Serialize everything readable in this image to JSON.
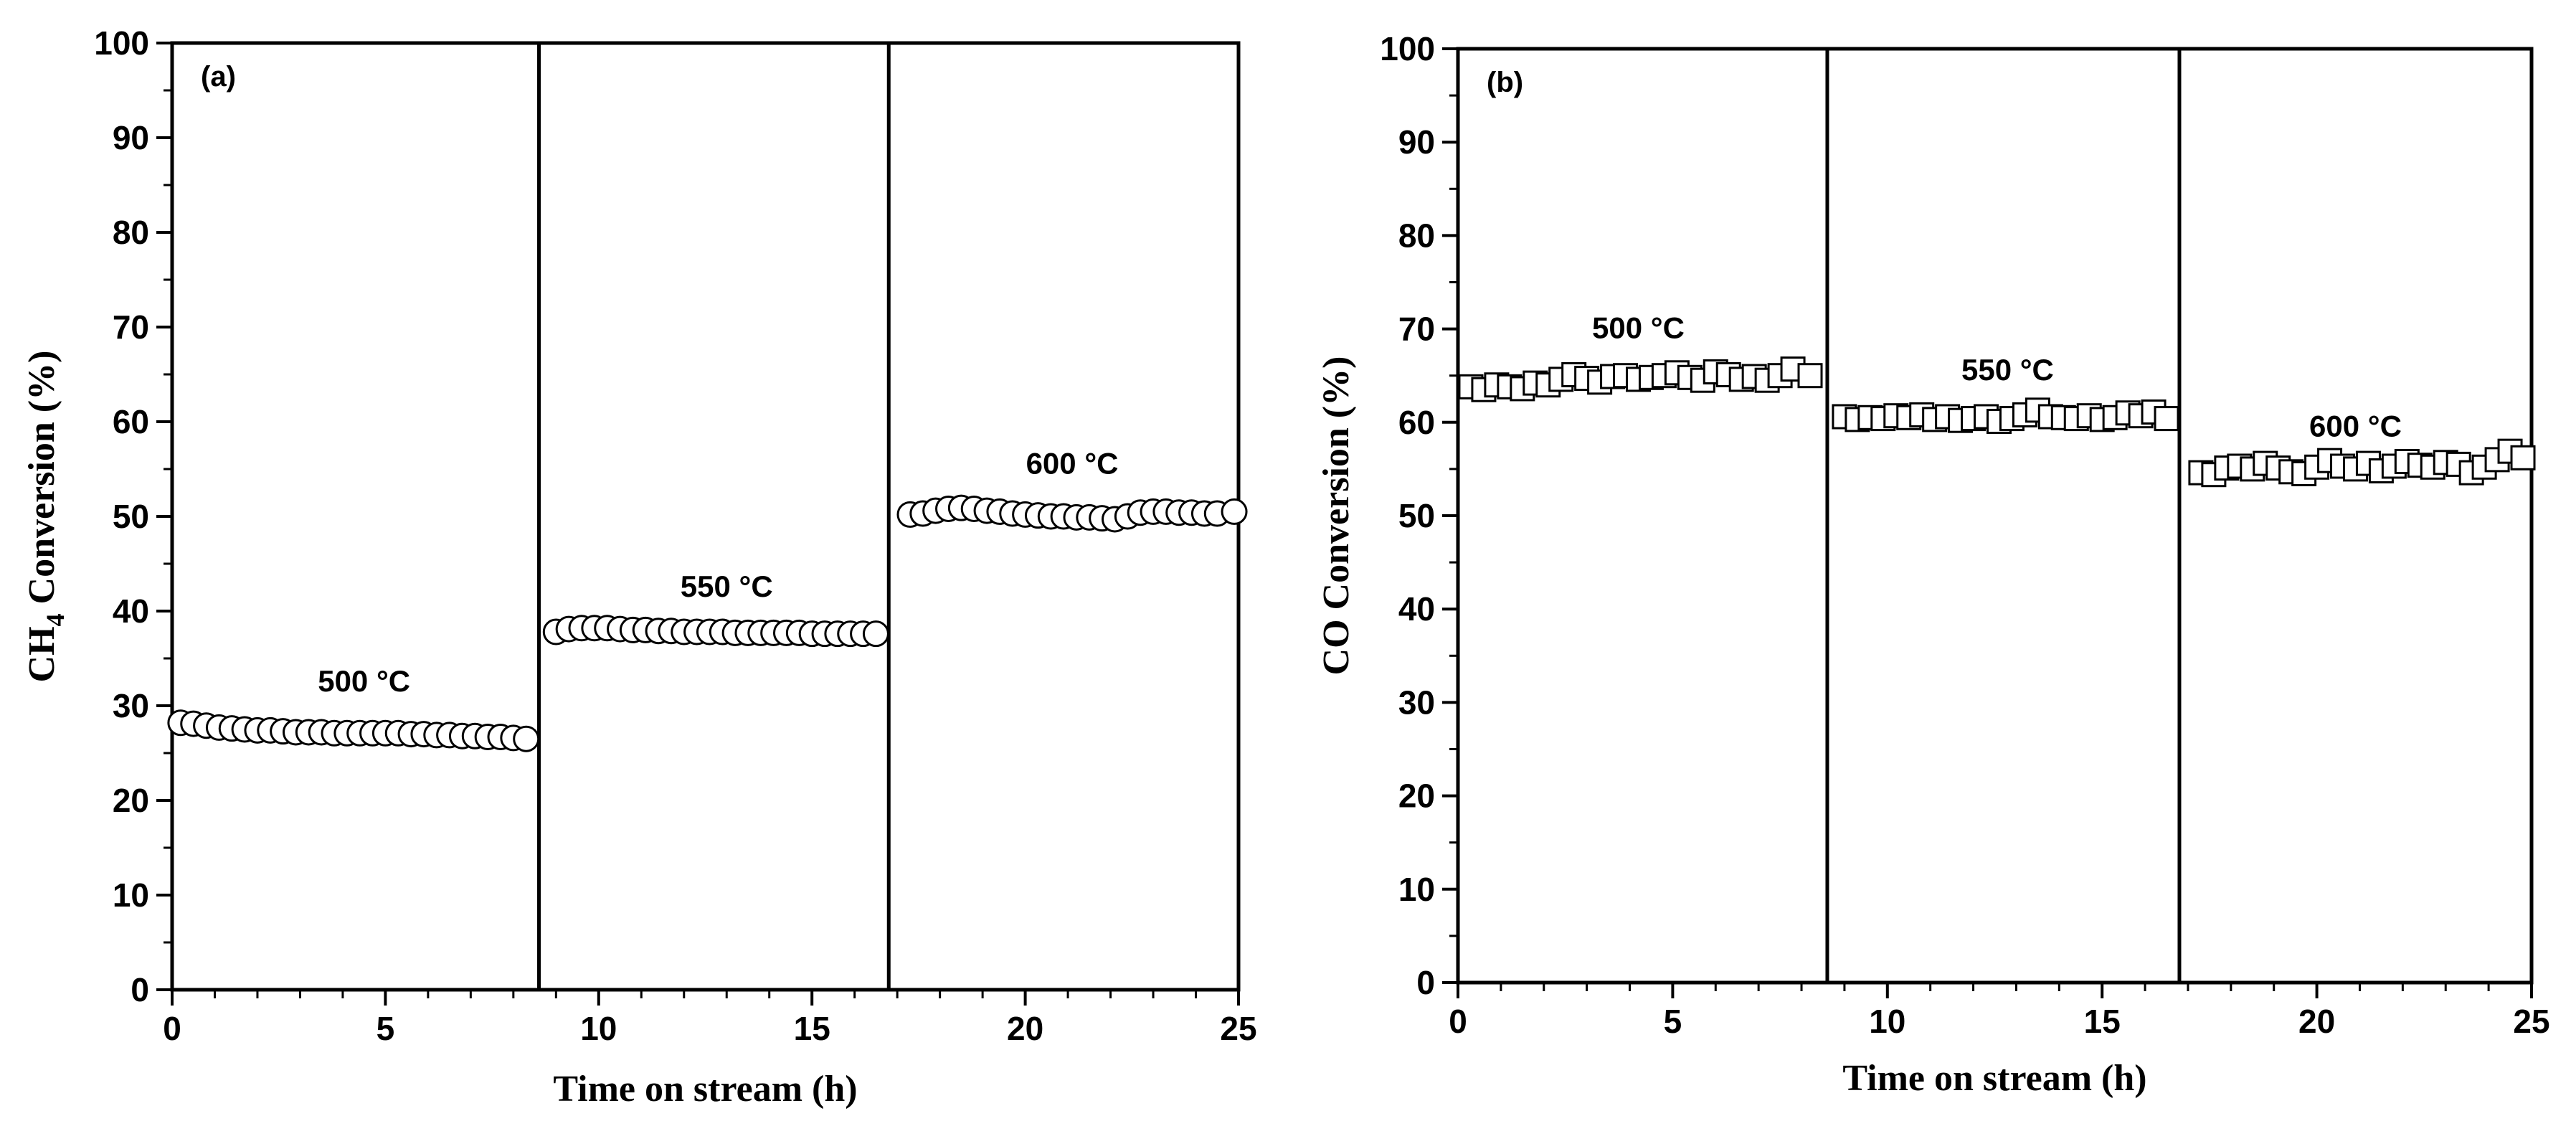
{
  "chart_data": [
    {
      "type": "scatter",
      "panel_label": "(a)",
      "xlabel": "Time on stream (h)",
      "ylabel": {
        "prefix": "CH",
        "subscript": "4",
        "suffix": " Conversion (%)"
      },
      "xlim": [
        0,
        25
      ],
      "ylim": [
        0,
        100
      ],
      "xticks": [
        0,
        5,
        10,
        15,
        20,
        25
      ],
      "yticks": [
        0,
        10,
        20,
        30,
        40,
        50,
        60,
        70,
        80,
        90,
        100
      ],
      "marker": "circle",
      "dividers": [
        8.6,
        16.8
      ],
      "segments": [
        {
          "label": "500 °C",
          "label_x": 4.5,
          "label_y": 31.5,
          "x": [
            0.2,
            0.5,
            0.8,
            1.1,
            1.4,
            1.7,
            2.0,
            2.3,
            2.6,
            2.9,
            3.2,
            3.5,
            3.8,
            4.1,
            4.4,
            4.7,
            5.0,
            5.3,
            5.6,
            5.9,
            6.2,
            6.5,
            6.8,
            7.1,
            7.4,
            7.7,
            8.0,
            8.3
          ],
          "y": [
            28.2,
            28.1,
            27.9,
            27.7,
            27.6,
            27.5,
            27.4,
            27.4,
            27.3,
            27.2,
            27.2,
            27.2,
            27.1,
            27.1,
            27.1,
            27.1,
            27.1,
            27.1,
            27.0,
            27.0,
            26.9,
            26.9,
            26.8,
            26.8,
            26.7,
            26.7,
            26.6,
            26.5
          ]
        },
        {
          "label": "550 °C",
          "label_x": 13.0,
          "label_y": 41.5,
          "x": [
            9.0,
            9.3,
            9.6,
            9.9,
            10.2,
            10.5,
            10.8,
            11.1,
            11.4,
            11.7,
            12.0,
            12.3,
            12.6,
            12.9,
            13.2,
            13.5,
            13.8,
            14.1,
            14.4,
            14.7,
            15.0,
            15.3,
            15.6,
            15.9,
            16.2,
            16.5
          ],
          "y": [
            37.8,
            38.1,
            38.2,
            38.2,
            38.2,
            38.1,
            38.0,
            38.0,
            37.9,
            37.9,
            37.8,
            37.8,
            37.8,
            37.8,
            37.7,
            37.7,
            37.7,
            37.7,
            37.7,
            37.7,
            37.6,
            37.6,
            37.6,
            37.6,
            37.6,
            37.6
          ]
        },
        {
          "label": "600 °C",
          "label_x": 21.1,
          "label_y": 54.5,
          "x": [
            17.3,
            17.6,
            17.9,
            18.2,
            18.5,
            18.8,
            19.1,
            19.4,
            19.7,
            20.0,
            20.3,
            20.6,
            20.9,
            21.2,
            21.5,
            21.8,
            22.1,
            22.4,
            22.7,
            23.0,
            23.3,
            23.6,
            23.9,
            24.2,
            24.5,
            24.9
          ],
          "y": [
            50.2,
            50.3,
            50.6,
            50.8,
            50.9,
            50.8,
            50.6,
            50.5,
            50.3,
            50.2,
            50.1,
            50.0,
            50.0,
            49.9,
            49.9,
            49.8,
            49.7,
            50.0,
            50.4,
            50.5,
            50.5,
            50.4,
            50.4,
            50.3,
            50.3,
            50.5
          ]
        }
      ]
    },
    {
      "type": "scatter",
      "panel_label": "(b)",
      "xlabel": "Time on stream (h)",
      "ylabel": {
        "prefix": "CO Conversion (%)",
        "subscript": "",
        "suffix": ""
      },
      "xlim": [
        0,
        25
      ],
      "ylim": [
        0,
        100
      ],
      "xticks": [
        0,
        5,
        10,
        15,
        20,
        25
      ],
      "yticks": [
        0,
        10,
        20,
        30,
        40,
        50,
        60,
        70,
        80,
        90,
        100
      ],
      "marker": "square",
      "dividers": [
        8.6,
        16.8
      ],
      "segments": [
        {
          "label": "500 °C",
          "label_x": 4.2,
          "label_y": 69.0,
          "x": [
            0.3,
            0.6,
            0.9,
            1.2,
            1.5,
            1.8,
            2.1,
            2.4,
            2.7,
            3.0,
            3.3,
            3.6,
            3.9,
            4.2,
            4.5,
            4.8,
            5.1,
            5.4,
            5.7,
            6.0,
            6.3,
            6.6,
            6.9,
            7.2,
            7.5,
            7.8,
            8.2
          ],
          "y": [
            63.8,
            63.5,
            64.0,
            63.8,
            63.6,
            64.2,
            64.0,
            64.6,
            65.1,
            64.7,
            64.3,
            64.9,
            65.0,
            64.6,
            64.8,
            65.0,
            65.3,
            64.8,
            64.5,
            65.4,
            65.1,
            64.6,
            64.9,
            64.5,
            65.0,
            65.7,
            65.0
          ]
        },
        {
          "label": "550 °C",
          "label_x": 12.8,
          "label_y": 64.5,
          "x": [
            9.0,
            9.3,
            9.6,
            9.9,
            10.2,
            10.5,
            10.8,
            11.1,
            11.4,
            11.7,
            12.0,
            12.3,
            12.6,
            12.9,
            13.2,
            13.5,
            13.8,
            14.1,
            14.4,
            14.7,
            15.0,
            15.3,
            15.6,
            15.9,
            16.2,
            16.5
          ],
          "y": [
            60.6,
            60.3,
            60.5,
            60.4,
            60.7,
            60.5,
            60.8,
            60.3,
            60.6,
            60.2,
            60.4,
            60.6,
            60.1,
            60.4,
            60.8,
            61.3,
            60.6,
            60.5,
            60.4,
            60.7,
            60.3,
            60.5,
            61.0,
            60.7,
            61.1,
            60.4
          ]
        },
        {
          "label": "600 °C",
          "label_x": 20.9,
          "label_y": 58.5,
          "x": [
            17.3,
            17.6,
            17.9,
            18.2,
            18.5,
            18.8,
            19.1,
            19.4,
            19.7,
            20.0,
            20.3,
            20.6,
            20.9,
            21.2,
            21.5,
            21.8,
            22.1,
            22.4,
            22.7,
            23.0,
            23.3,
            23.6,
            23.9,
            24.2,
            24.5,
            24.8
          ],
          "y": [
            54.6,
            54.4,
            55.1,
            55.3,
            55.0,
            55.6,
            55.1,
            54.7,
            54.5,
            55.2,
            55.9,
            55.3,
            55.0,
            55.6,
            54.8,
            55.3,
            55.8,
            55.4,
            55.2,
            55.7,
            55.5,
            54.6,
            55.2,
            56.0,
            56.9,
            56.2
          ]
        }
      ]
    }
  ]
}
